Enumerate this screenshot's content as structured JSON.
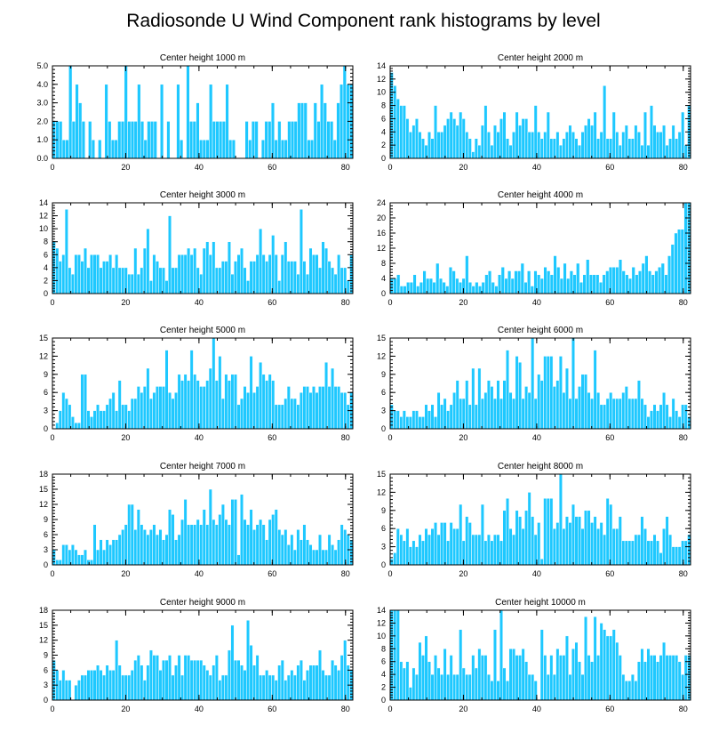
{
  "chart_data": {
    "type": "bar",
    "title": "Radiosonde U Wind Component rank histograms by level",
    "xlim": [
      0,
      82
    ],
    "x_ticks": [
      0,
      20,
      40,
      60,
      80
    ],
    "panels": [
      {
        "title": "Center height 1000 m",
        "ylim": [
          0,
          5
        ],
        "y_ticks": [
          0,
          1,
          2,
          3,
          4,
          5
        ],
        "y_tick_labels": [
          "0.0",
          "1.0",
          "2.0",
          "3.0",
          "4.0",
          "5.0"
        ],
        "values": [
          2,
          2,
          2,
          1,
          1,
          5,
          2,
          4,
          3,
          2,
          0,
          2,
          1,
          0,
          1,
          0,
          4,
          2,
          1,
          1,
          2,
          2,
          5,
          2,
          2,
          2,
          4,
          2,
          1,
          2,
          2,
          2,
          0,
          4,
          0,
          2,
          0,
          0,
          4,
          1,
          0,
          5,
          2,
          2,
          3,
          1,
          1,
          1,
          4,
          2,
          2,
          2,
          2,
          4,
          1,
          1,
          0,
          0,
          0,
          2,
          1,
          2,
          2,
          0,
          1,
          2,
          2,
          3,
          1,
          2,
          1,
          1,
          2,
          2,
          2,
          3,
          3,
          3,
          1,
          1,
          3,
          2,
          4,
          3,
          2,
          2,
          1,
          3,
          4,
          5,
          4,
          4
        ]
      },
      {
        "title": "Center height 2000 m",
        "ylim": [
          0,
          14
        ],
        "y_ticks": [
          0,
          2,
          4,
          6,
          8,
          10,
          12,
          14
        ],
        "y_tick_labels": [
          "0",
          "2",
          "4",
          "6",
          "8",
          "10",
          "12",
          "14"
        ],
        "values": [
          13,
          11,
          9,
          8,
          8,
          6,
          4,
          5,
          6,
          4,
          3,
          2,
          4,
          3,
          8,
          4,
          4,
          5,
          6,
          7,
          6,
          5,
          7,
          6,
          4,
          3,
          1,
          3,
          2,
          5,
          8,
          4,
          2,
          5,
          4,
          6,
          7,
          3,
          2,
          4,
          7,
          5,
          6,
          6,
          4,
          4,
          8,
          4,
          3,
          4,
          7,
          3,
          3,
          4,
          2,
          3,
          4,
          5,
          4,
          3,
          2,
          4,
          5,
          6,
          5,
          7,
          3,
          4,
          11,
          3,
          3,
          7,
          4,
          2,
          4,
          5,
          3,
          3,
          5,
          4,
          2,
          7,
          2,
          8,
          5,
          4,
          4,
          5,
          2,
          3,
          5,
          3,
          4,
          7,
          2,
          8
        ]
      },
      {
        "title": "Center height 3000 m",
        "ylim": [
          0,
          14
        ],
        "y_ticks": [
          0,
          2,
          4,
          6,
          8,
          10,
          12,
          14
        ],
        "y_tick_labels": [
          "0",
          "2",
          "4",
          "6",
          "8",
          "10",
          "12",
          "14"
        ],
        "values": [
          8,
          7,
          5,
          6,
          13,
          4,
          3,
          6,
          6,
          5,
          7,
          4,
          6,
          6,
          6,
          4,
          5,
          5,
          6,
          4,
          6,
          4,
          4,
          4,
          3,
          3,
          7,
          3,
          4,
          7,
          10,
          2,
          6,
          5,
          4,
          4,
          2,
          12,
          4,
          4,
          6,
          6,
          6,
          7,
          6,
          7,
          4,
          3,
          7,
          8,
          6,
          8,
          4,
          4,
          5,
          5,
          8,
          3,
          5,
          6,
          7,
          4,
          2,
          5,
          5,
          6,
          10,
          6,
          5,
          6,
          9,
          6,
          2,
          6,
          8,
          5,
          5,
          5,
          3,
          13,
          5,
          3,
          7,
          6,
          6,
          4,
          8,
          7,
          5,
          4,
          3,
          6,
          4,
          4,
          2,
          6
        ]
      },
      {
        "title": "Center height 4000 m",
        "ylim": [
          0,
          24
        ],
        "y_ticks": [
          0,
          4,
          8,
          12,
          16,
          20,
          24
        ],
        "y_tick_labels": [
          "0",
          "4",
          "8",
          "12",
          "16",
          "20",
          "24"
        ],
        "values": [
          4,
          4,
          5,
          2,
          2,
          3,
          3,
          5,
          2,
          3,
          6,
          4,
          4,
          3,
          8,
          4,
          3,
          2,
          7,
          6,
          4,
          3,
          4,
          10,
          3,
          2,
          3,
          2,
          3,
          5,
          6,
          3,
          2,
          5,
          7,
          4,
          6,
          4,
          6,
          6,
          8,
          3,
          6,
          2,
          6,
          5,
          4,
          7,
          6,
          5,
          10,
          7,
          4,
          8,
          4,
          6,
          5,
          8,
          3,
          5,
          9,
          5,
          5,
          5,
          3,
          5,
          6,
          7,
          7,
          7,
          9,
          6,
          5,
          4,
          7,
          5,
          6,
          8,
          10,
          6,
          5,
          6,
          7,
          8,
          5,
          10,
          13,
          16,
          17,
          17,
          24,
          24
        ]
      },
      {
        "title": "Center height 5000 m",
        "ylim": [
          0,
          15
        ],
        "y_ticks": [
          0,
          3,
          6,
          9,
          12,
          15
        ],
        "y_tick_labels": [
          "0",
          "3",
          "6",
          "9",
          "12",
          "15"
        ],
        "values": [
          0,
          1,
          3,
          6,
          5,
          4,
          2,
          1,
          1,
          9,
          9,
          3,
          2,
          3,
          4,
          3,
          3,
          4,
          5,
          6,
          3,
          8,
          4,
          4,
          3,
          5,
          5,
          7,
          6,
          7,
          10,
          5,
          6,
          7,
          7,
          7,
          13,
          6,
          5,
          6,
          9,
          8,
          9,
          8,
          13,
          9,
          8,
          7,
          7,
          8,
          10,
          15,
          8,
          12,
          5,
          9,
          8,
          9,
          9,
          4,
          5,
          7,
          6,
          12,
          6,
          7,
          11,
          9,
          8,
          9,
          8,
          4,
          4,
          4,
          5,
          7,
          5,
          5,
          4,
          6,
          7,
          7,
          6,
          7,
          6,
          7,
          7,
          11,
          7,
          10,
          7,
          7,
          6,
          6,
          4,
          6
        ]
      },
      {
        "title": "Center height 6000 m",
        "ylim": [
          0,
          15
        ],
        "y_ticks": [
          0,
          3,
          6,
          9,
          12,
          15
        ],
        "y_tick_labels": [
          "0",
          "3",
          "6",
          "9",
          "12",
          "15"
        ],
        "values": [
          4,
          3,
          3,
          2,
          3,
          2,
          2,
          3,
          3,
          2,
          2,
          4,
          3,
          4,
          2,
          6,
          4,
          5,
          3,
          4,
          6,
          8,
          5,
          5,
          8,
          4,
          10,
          4,
          10,
          5,
          6,
          8,
          7,
          5,
          8,
          5,
          8,
          13,
          6,
          5,
          12,
          11,
          5,
          7,
          6,
          15,
          5,
          9,
          8,
          12,
          12,
          12,
          7,
          8,
          12,
          6,
          10,
          5,
          15,
          5,
          7,
          9,
          9,
          6,
          5,
          13,
          6,
          4,
          4,
          5,
          6,
          5,
          5,
          5,
          6,
          7,
          5,
          5,
          5,
          8,
          5,
          4,
          2,
          3,
          4,
          3,
          4,
          6,
          4,
          2,
          5,
          3,
          2,
          4,
          4,
          2
        ]
      },
      {
        "title": "Center height 7000 m",
        "ylim": [
          0,
          18
        ],
        "y_ticks": [
          0,
          3,
          6,
          9,
          12,
          15,
          18
        ],
        "y_tick_labels": [
          "0",
          "3",
          "6",
          "9",
          "12",
          "15",
          "18"
        ],
        "values": [
          3,
          1,
          1,
          4,
          4,
          3,
          4,
          3,
          2,
          2,
          3,
          1,
          1,
          8,
          3,
          5,
          3,
          5,
          4,
          5,
          5,
          6,
          7,
          8,
          12,
          12,
          7,
          11,
          8,
          7,
          6,
          7,
          8,
          6,
          7,
          5,
          6,
          11,
          10,
          5,
          6,
          9,
          13,
          8,
          8,
          8,
          9,
          8,
          11,
          8,
          15,
          9,
          8,
          10,
          12,
          9,
          8,
          13,
          13,
          2,
          14,
          9,
          8,
          11,
          7,
          8,
          9,
          8,
          5,
          9,
          10,
          11,
          7,
          6,
          7,
          4,
          6,
          3,
          7,
          5,
          8,
          5,
          4,
          3,
          3,
          6,
          3,
          3,
          6,
          4,
          3,
          5,
          8,
          7,
          6,
          5
        ]
      },
      {
        "title": "Center height 8000 m",
        "ylim": [
          0,
          15
        ],
        "y_ticks": [
          0,
          3,
          6,
          9,
          12,
          15
        ],
        "y_tick_labels": [
          "0",
          "3",
          "6",
          "9",
          "12",
          "15"
        ],
        "values": [
          1,
          2,
          6,
          5,
          4,
          6,
          3,
          4,
          3,
          5,
          4,
          6,
          5,
          6,
          7,
          5,
          7,
          7,
          4,
          7,
          6,
          6,
          10,
          4,
          8,
          7,
          5,
          5,
          5,
          10,
          4,
          5,
          4,
          5,
          5,
          4,
          9,
          11,
          6,
          5,
          9,
          8,
          6,
          9,
          12,
          8,
          5,
          7,
          1,
          11,
          11,
          11,
          6,
          7,
          15,
          6,
          8,
          7,
          10,
          8,
          8,
          6,
          9,
          9,
          7,
          8,
          6,
          7,
          5,
          11,
          10,
          6,
          6,
          8,
          4,
          4,
          4,
          4,
          5,
          5,
          8,
          6,
          4,
          4,
          5,
          4,
          2,
          6,
          8,
          5,
          3,
          3,
          3,
          4,
          4,
          5
        ]
      },
      {
        "title": "Center height 9000 m",
        "ylim": [
          0,
          18
        ],
        "y_ticks": [
          0,
          3,
          6,
          9,
          12,
          15,
          18
        ],
        "y_tick_labels": [
          "0",
          "3",
          "6",
          "9",
          "12",
          "15",
          "18"
        ],
        "values": [
          8,
          6,
          4,
          6,
          4,
          4,
          0,
          3,
          4,
          5,
          5,
          6,
          6,
          6,
          7,
          6,
          5,
          7,
          6,
          6,
          12,
          7,
          5,
          5,
          5,
          6,
          8,
          9,
          7,
          4,
          7,
          10,
          9,
          9,
          6,
          8,
          8,
          9,
          5,
          7,
          9,
          5,
          9,
          9,
          8,
          8,
          8,
          8,
          7,
          6,
          5,
          7,
          9,
          4,
          5,
          5,
          10,
          15,
          8,
          8,
          7,
          6,
          16,
          11,
          7,
          9,
          5,
          5,
          6,
          5,
          5,
          4,
          7,
          8,
          4,
          5,
          6,
          5,
          7,
          8,
          4,
          6,
          7,
          7,
          7,
          10,
          6,
          5,
          5,
          8,
          7,
          6,
          9,
          12,
          7,
          6
        ]
      },
      {
        "title": "Center height 10000 m",
        "ylim": [
          0,
          14
        ],
        "y_ticks": [
          0,
          2,
          4,
          6,
          8,
          10,
          12,
          14
        ],
        "y_tick_labels": [
          "0",
          "2",
          "4",
          "6",
          "8",
          "10",
          "12",
          "14"
        ],
        "values": [
          14,
          14,
          14,
          6,
          5,
          6,
          2,
          5,
          4,
          9,
          7,
          10,
          6,
          4,
          7,
          5,
          4,
          8,
          4,
          7,
          4,
          4,
          11,
          5,
          4,
          4,
          7,
          5,
          8,
          7,
          7,
          4,
          3,
          11,
          3,
          14,
          5,
          3,
          8,
          8,
          7,
          7,
          8,
          6,
          4,
          4,
          3,
          0,
          11,
          7,
          4,
          7,
          4,
          8,
          7,
          7,
          10,
          4,
          8,
          9,
          6,
          4,
          13,
          7,
          6,
          13,
          7,
          12,
          11,
          10,
          10,
          11,
          9,
          7,
          4,
          3,
          3,
          4,
          3,
          6,
          8,
          6,
          8,
          7,
          7,
          6,
          7,
          9,
          7,
          7,
          7,
          7,
          6,
          4,
          7,
          7
        ]
      }
    ]
  }
}
